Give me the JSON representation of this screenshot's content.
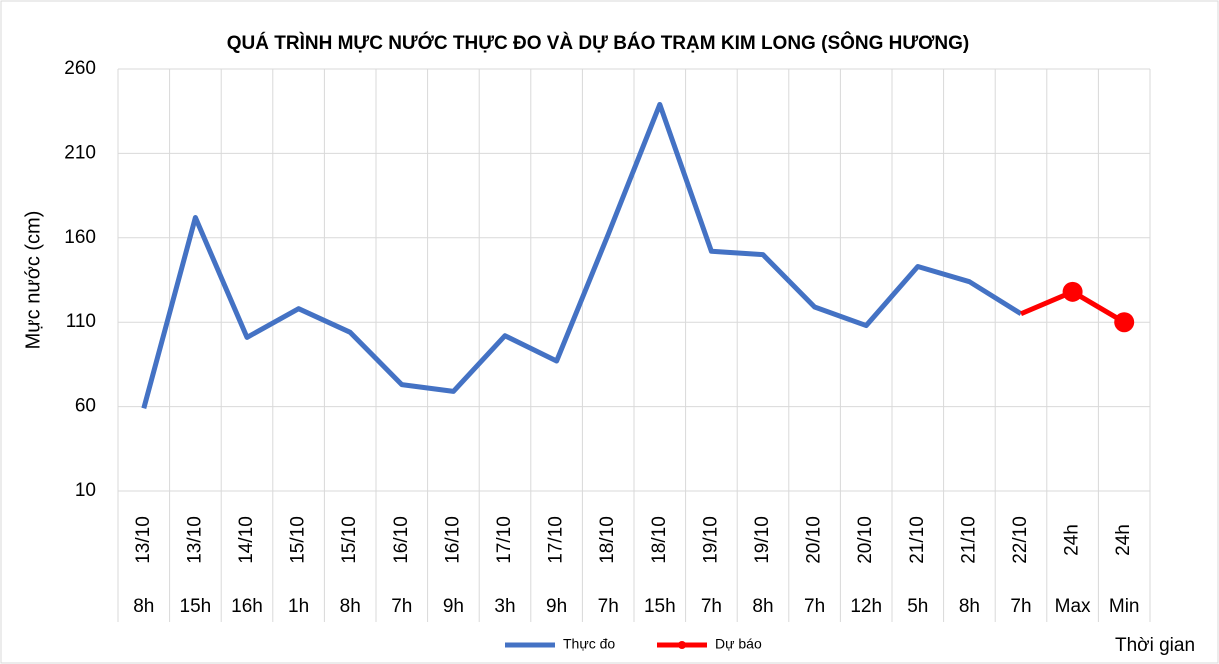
{
  "chart_data": {
    "type": "line",
    "title": "QUÁ TRÌNH MỰC NƯỚC THỰC ĐO VÀ DỰ BÁO TRẠM KIM LONG (SÔNG HƯƠNG)",
    "y_label": "Mực nước (cm)",
    "x_label": "Thời gian",
    "categories": [
      "13/10",
      "13/10",
      "14/10",
      "15/10",
      "15/10",
      "16/10",
      "16/10",
      "17/10",
      "17/10",
      "18/10",
      "18/10",
      "19/10",
      "19/10",
      "20/10",
      "20/10",
      "21/10",
      "21/10",
      "22/10",
      "24h",
      "24h"
    ],
    "subcategories": [
      "8h",
      "15h",
      "16h",
      "1h",
      "8h",
      "7h",
      "9h",
      "3h",
      "9h",
      "7h",
      "15h",
      "7h",
      "8h",
      "7h",
      "12h",
      "5h",
      "8h",
      "7h",
      "Max",
      "Min"
    ],
    "series": [
      {
        "name": "Thực đo",
        "color": "#4472c4",
        "markers": false,
        "values": [
          59,
          172,
          101,
          118,
          104,
          73,
          69,
          102,
          87,
          162,
          239,
          152,
          150,
          119,
          108,
          143,
          134,
          115,
          null,
          null
        ]
      },
      {
        "name": "Dự báo",
        "color": "#ff0000",
        "markers": true,
        "values": [
          null,
          null,
          null,
          null,
          null,
          null,
          null,
          null,
          null,
          null,
          null,
          null,
          null,
          null,
          null,
          null,
          null,
          115,
          128,
          110
        ]
      }
    ],
    "ylim": [
      10,
      260
    ],
    "yticks": [
      10,
      60,
      110,
      160,
      210,
      260
    ],
    "grid": true
  }
}
